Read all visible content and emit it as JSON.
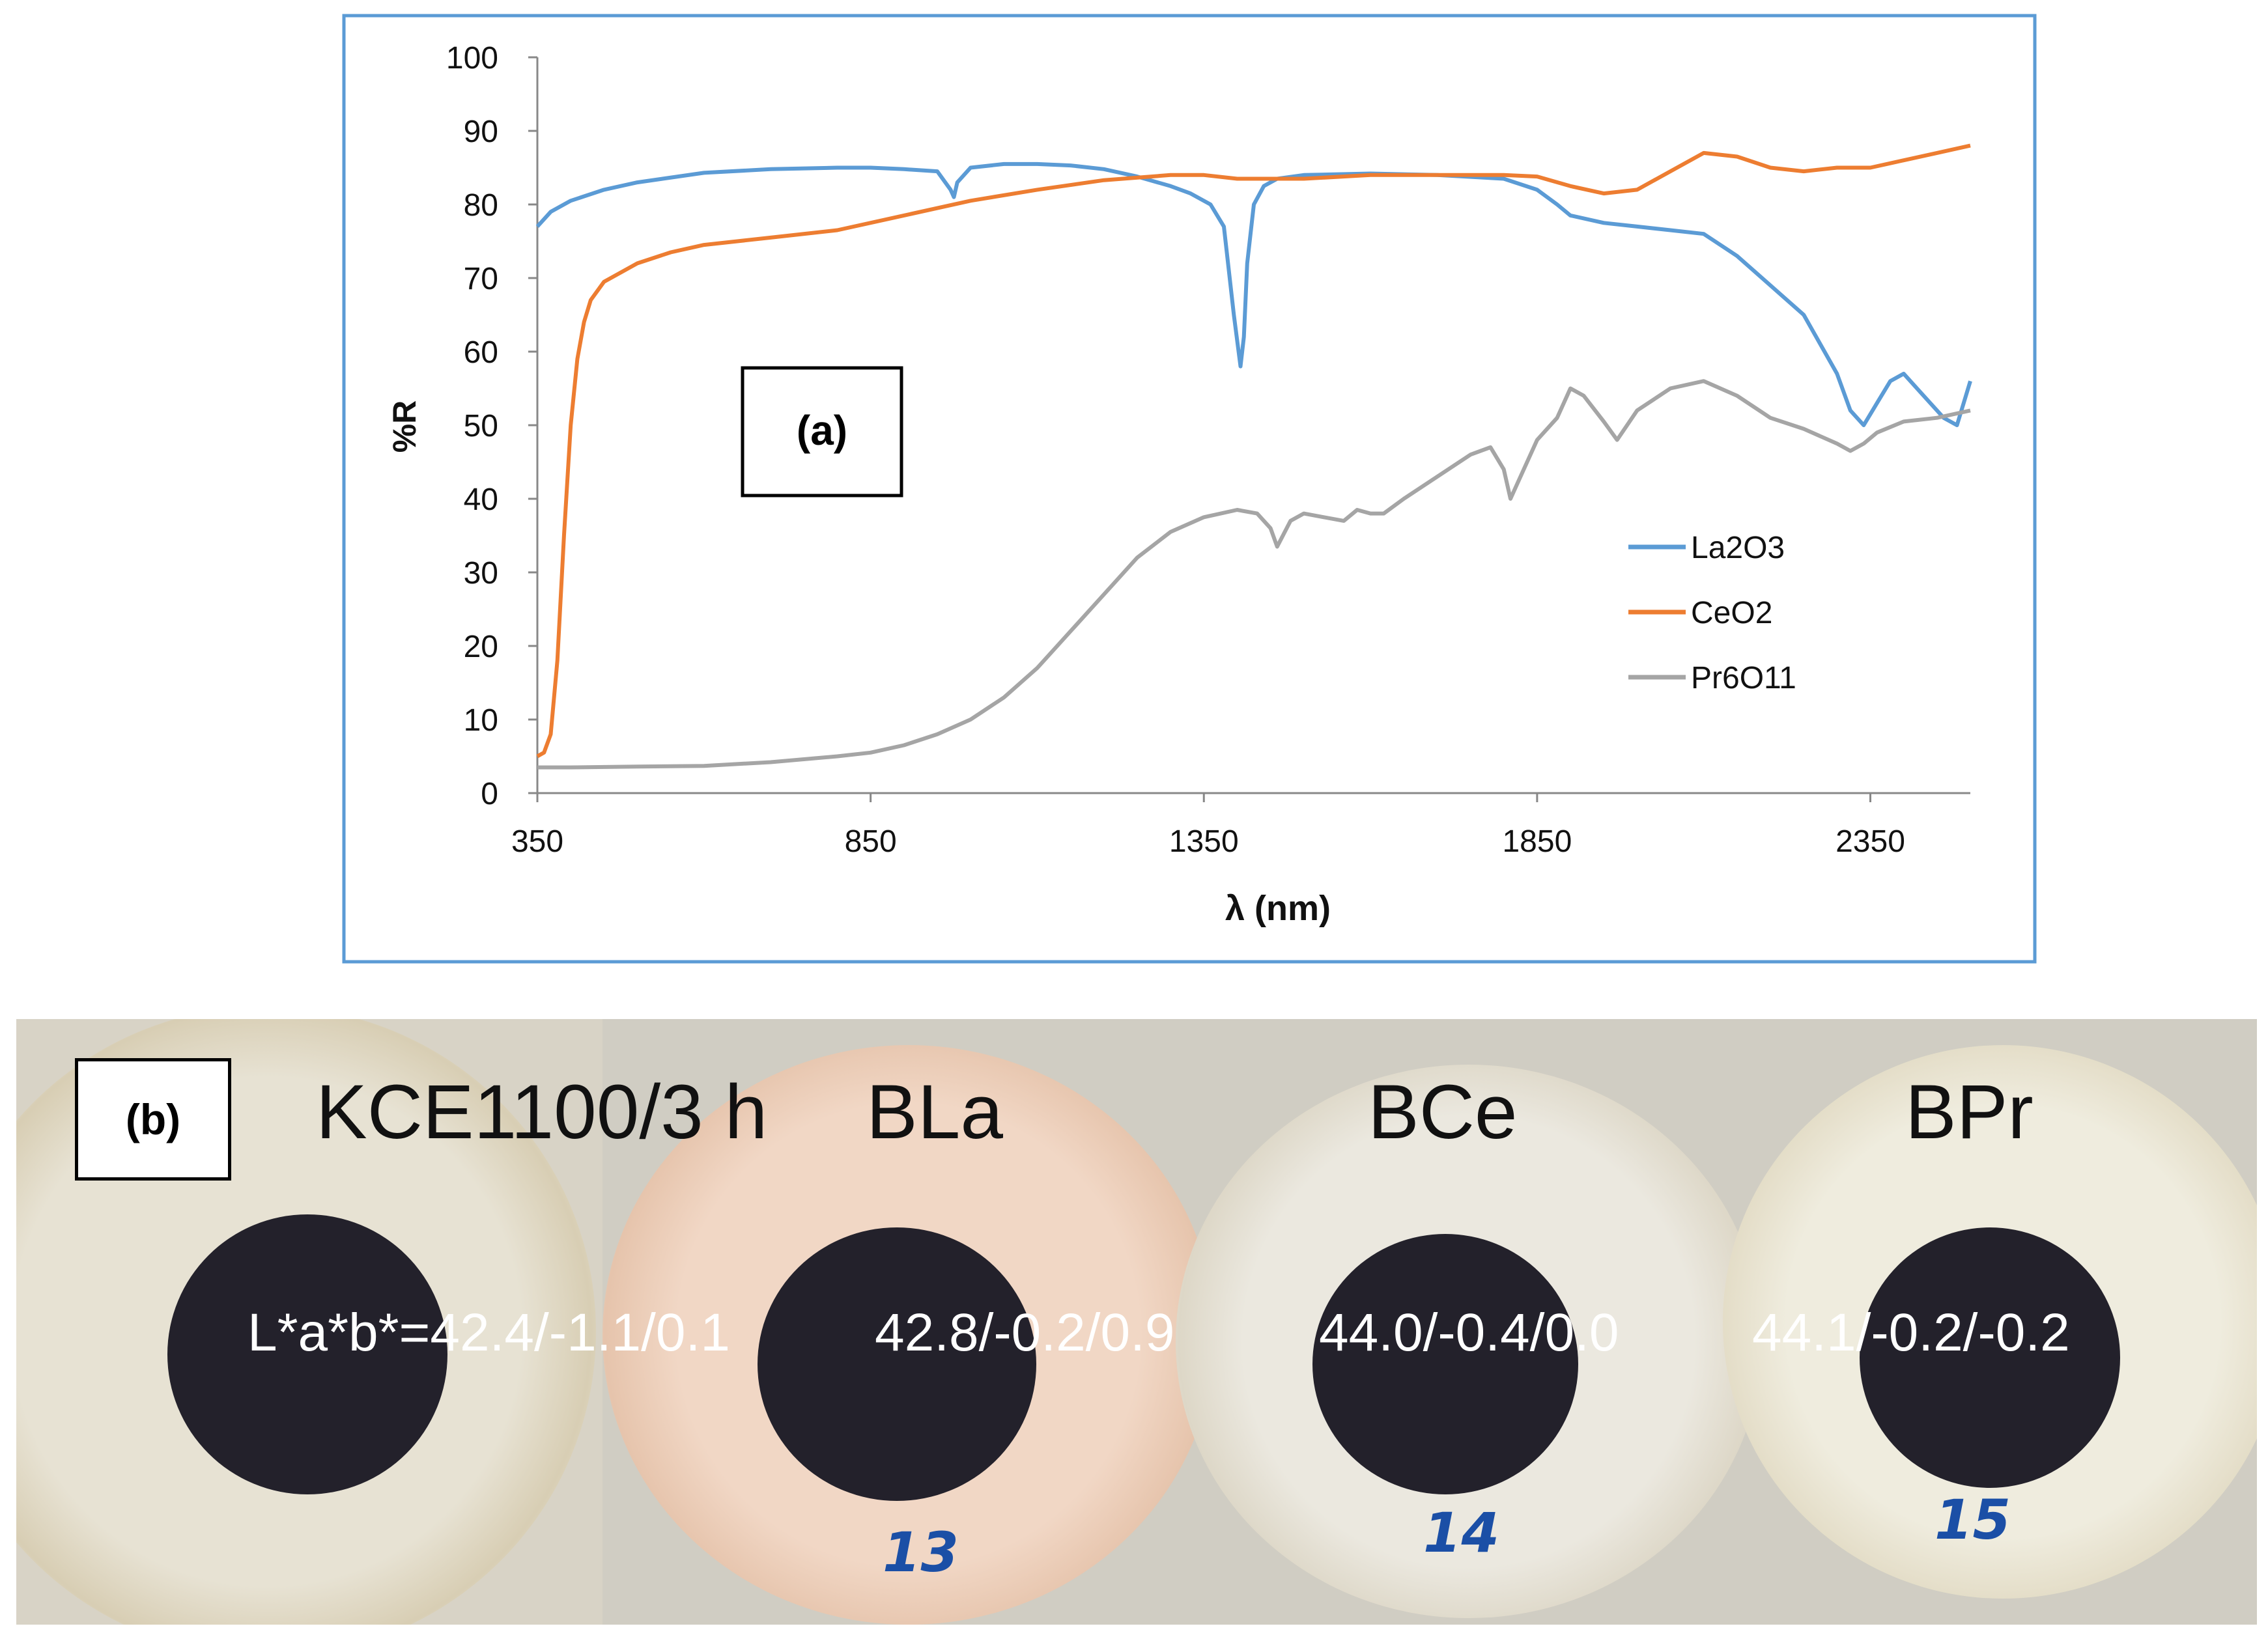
{
  "chart_data": {
    "type": "line",
    "panel_label": "(a)",
    "xlabel": "λ (nm)",
    "ylabel": "%R",
    "xlim": [
      350,
      2500
    ],
    "ylim": [
      0,
      100
    ],
    "xticks": [
      350,
      850,
      1350,
      1850,
      2350
    ],
    "yticks": [
      0,
      10,
      20,
      30,
      40,
      50,
      60,
      70,
      80,
      90,
      100
    ],
    "legend_position": "lower-right",
    "series": [
      {
        "name": "La2O3",
        "color": "#5b9bd5",
        "x": [
          350,
          370,
          400,
          450,
          500,
          600,
          700,
          800,
          850,
          900,
          950,
          970,
          975,
          980,
          1000,
          1050,
          1100,
          1150,
          1200,
          1250,
          1300,
          1330,
          1360,
          1380,
          1395,
          1405,
          1410,
          1415,
          1425,
          1440,
          1460,
          1500,
          1600,
          1700,
          1800,
          1850,
          1880,
          1900,
          1950,
          2000,
          2050,
          2100,
          2150,
          2200,
          2250,
          2300,
          2320,
          2340,
          2360,
          2380,
          2400,
          2420,
          2440,
          2460,
          2480,
          2500
        ],
        "y": [
          77,
          79,
          80.5,
          82,
          83,
          84.3,
          84.8,
          85,
          85,
          84.8,
          84.5,
          82,
          81,
          83,
          85,
          85.5,
          85.5,
          85.3,
          84.8,
          83.8,
          82.5,
          81.5,
          80,
          77,
          65,
          58,
          62,
          72,
          80,
          82.5,
          83.5,
          84,
          84.2,
          84,
          83.5,
          82,
          80,
          78.5,
          77.5,
          77,
          76.5,
          76,
          73,
          69,
          65,
          57,
          52,
          50,
          53,
          56,
          57,
          55,
          53,
          51,
          50,
          56
        ]
      },
      {
        "name": "CeO2",
        "color": "#ed7d31",
        "x": [
          350,
          360,
          370,
          380,
          390,
          400,
          410,
          420,
          430,
          450,
          500,
          550,
          600,
          650,
          700,
          800,
          900,
          1000,
          1100,
          1200,
          1300,
          1350,
          1400,
          1500,
          1600,
          1700,
          1800,
          1850,
          1900,
          1950,
          2000,
          2050,
          2100,
          2150,
          2200,
          2250,
          2300,
          2350,
          2400,
          2450,
          2500
        ],
        "y": [
          5,
          5.5,
          8,
          18,
          35,
          50,
          59,
          64,
          67,
          69.5,
          72,
          73.5,
          74.5,
          75,
          75.5,
          76.5,
          78.5,
          80.5,
          82,
          83.3,
          84,
          84,
          83.5,
          83.5,
          84,
          84,
          84,
          83.8,
          82.5,
          81.5,
          82,
          84.5,
          87,
          86.5,
          85,
          84.5,
          85,
          85,
          86,
          87,
          88
        ]
      },
      {
        "name": "Pr6O11",
        "color": "#a5a5a5",
        "x": [
          350,
          400,
          500,
          600,
          700,
          800,
          850,
          900,
          950,
          1000,
          1050,
          1100,
          1150,
          1200,
          1250,
          1300,
          1350,
          1400,
          1430,
          1450,
          1460,
          1480,
          1500,
          1530,
          1560,
          1580,
          1600,
          1620,
          1650,
          1700,
          1750,
          1780,
          1800,
          1810,
          1820,
          1850,
          1880,
          1900,
          1920,
          1950,
          1970,
          2000,
          2050,
          2100,
          2150,
          2200,
          2250,
          2300,
          2320,
          2340,
          2360,
          2400,
          2450,
          2500
        ],
        "y": [
          3.5,
          3.5,
          3.6,
          3.7,
          4.2,
          5,
          5.5,
          6.5,
          8,
          10,
          13,
          17,
          22,
          27,
          32,
          35.5,
          37.5,
          38.5,
          38,
          36,
          33.5,
          37,
          38,
          37.5,
          37,
          38.5,
          38,
          38,
          40,
          43,
          46,
          47,
          44,
          40,
          42,
          48,
          51,
          55,
          54,
          50.5,
          48,
          52,
          55,
          56,
          54,
          51,
          49.5,
          47.5,
          46.5,
          47.5,
          49,
          50.5,
          51,
          52
        ]
      }
    ]
  },
  "panel_b": {
    "label": "(b)",
    "samples": [
      {
        "title": "KCE1100/3 h",
        "lab": "L*a*b*=42.4/-1.1/0.1",
        "dish_number": ""
      },
      {
        "title": "BLa",
        "lab": "42.8/-0.2/0.9",
        "dish_number": "13"
      },
      {
        "title": "BCe",
        "lab": "44.0/-0.4/0.0",
        "dish_number": "14"
      },
      {
        "title": "BPr",
        "lab": "44.1/-0.2/-0.2",
        "dish_number": "15"
      }
    ]
  }
}
